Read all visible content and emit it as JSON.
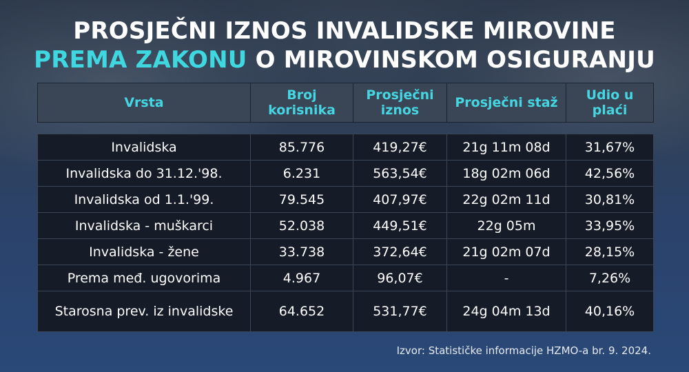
{
  "title": {
    "line1": "PROSJEČNI IZNOS INVALIDSKE MIROVINE",
    "line2_accent": "PREMA ZAKONU",
    "line2_rest": " O MIROVINSKOM OSIGURANJU"
  },
  "colors": {
    "accent": "#3fd8e0",
    "header_bg": "#3a4556",
    "row_bg": "#151b27"
  },
  "chart_data": {
    "type": "table",
    "columns": [
      "Vrsta",
      "Broj korisnika",
      "Prosječni iznos",
      "Prosječni staž",
      "Udio u plaći"
    ],
    "rows": [
      [
        "Invalidska",
        "85.776",
        "419,27€",
        "21g 11m 08d",
        "31,67%"
      ],
      [
        "Invalidska do 31.12.'98.",
        "6.231",
        "563,54€",
        "18g 02m 06d",
        "42,56%"
      ],
      [
        "Invalidska od 1.1.'99.",
        "79.545",
        "407,97€",
        "22g 02m 11d",
        "30,81%"
      ],
      [
        "Invalidska - muškarci",
        "52.038",
        "449,51€",
        "22g 05m",
        "33,95%"
      ],
      [
        "Invalidska - žene",
        "33.738",
        "372,64€",
        "21g 02m 07d",
        "28,15%"
      ],
      [
        "Prema međ. ugovorima",
        "4.967",
        "96,07€",
        "-",
        "7,26%"
      ],
      [
        "Starosna prev. iz invalidske",
        "64.652",
        "531,77€",
        "24g 04m 13d",
        "40,16%"
      ]
    ]
  },
  "source": "Izvor: Statističke informacije HZMO-a br. 9. 2024."
}
